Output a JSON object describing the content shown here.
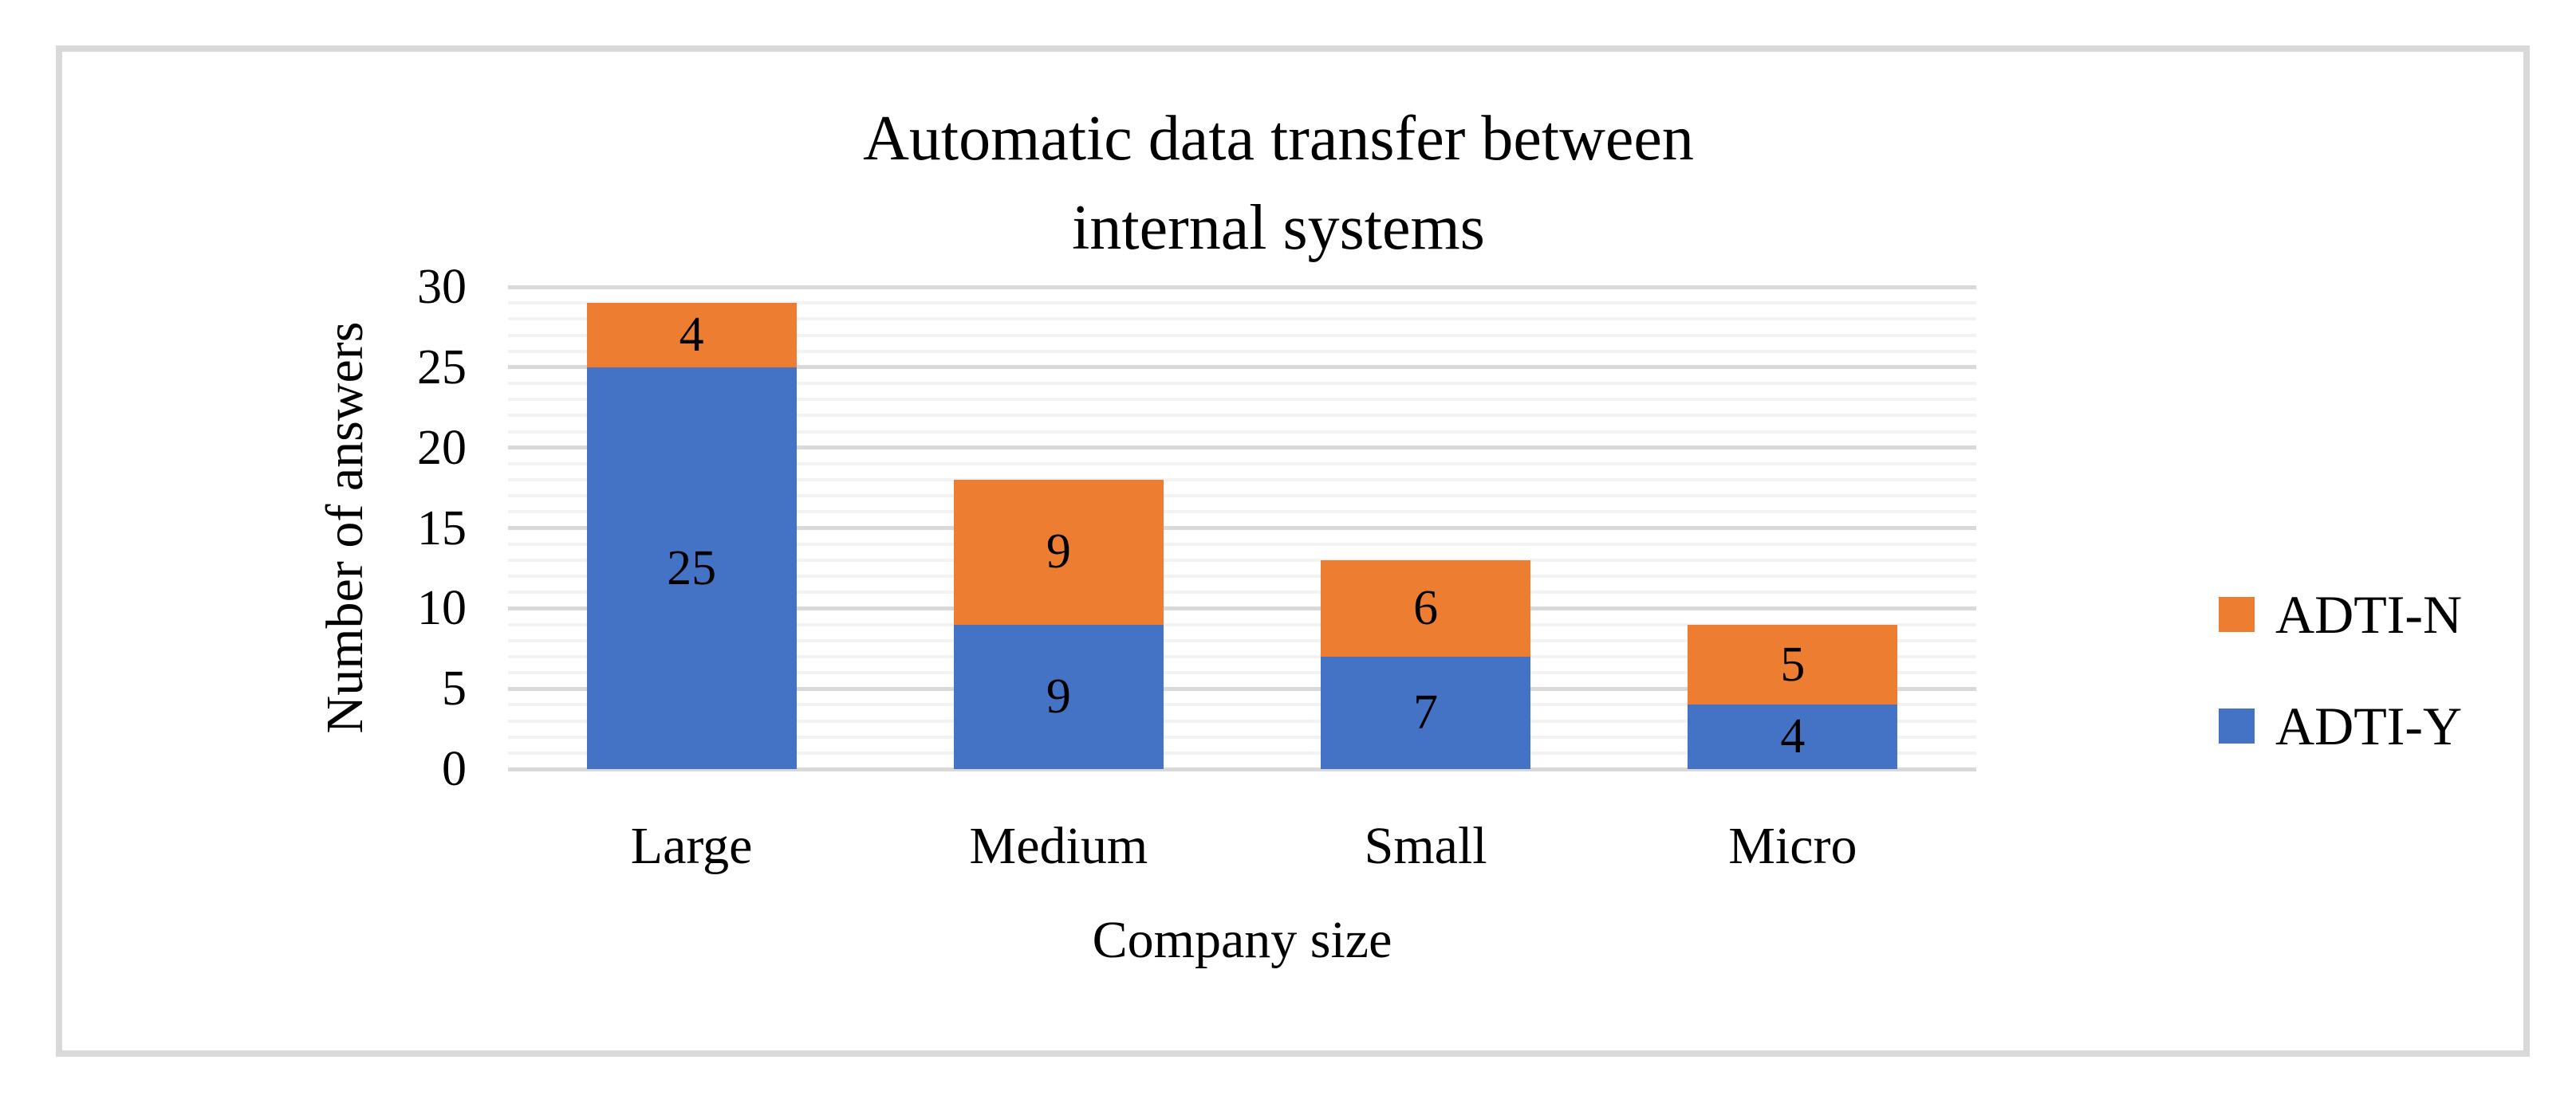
{
  "chart_data": {
    "type": "bar",
    "subtype": "stacked-column",
    "title": "Automatic data transfer between internal systems",
    "title_lines": [
      "Automatic data transfer between",
      "internal systems"
    ],
    "categories": [
      "Large",
      "Medium",
      "Small",
      "Micro"
    ],
    "series": [
      {
        "name": "ADTI-Y",
        "color": "#4472C4",
        "values": [
          25,
          9,
          7,
          4
        ]
      },
      {
        "name": "ADTI-N",
        "color": "#ED7D31",
        "values": [
          4,
          9,
          6,
          5
        ]
      }
    ],
    "stack_totals": [
      29,
      18,
      13,
      9
    ],
    "data_labels_shown": true,
    "xlabel": "Company size",
    "ylabel": "Number of answers",
    "ylim": [
      0,
      30
    ],
    "ytick_step": 5,
    "ytick_labels": [
      "0",
      "5",
      "10",
      "15",
      "20",
      "25",
      "30"
    ],
    "minor_grid_step": 1,
    "grid": true,
    "legend_position": "right",
    "legend_items": [
      "ADTI-N",
      "ADTI-Y"
    ]
  },
  "colors": {
    "frame_border": "#D9D9D9",
    "major_gridline": "#D9D9D9",
    "minor_gridline": "#F2F2F2",
    "background": "#FFFFFF",
    "text": "#000000"
  }
}
